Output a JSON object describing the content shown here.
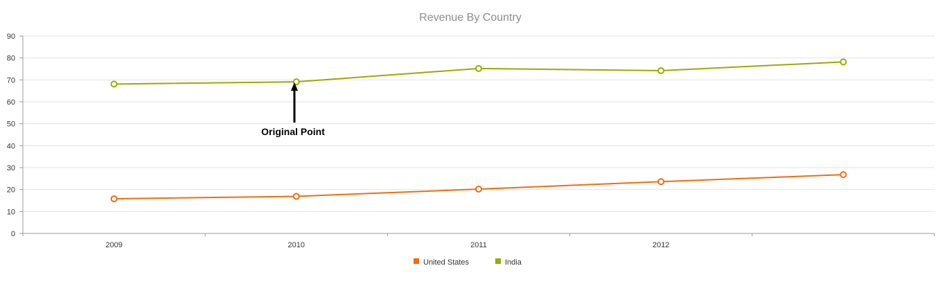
{
  "chart_data": {
    "type": "line",
    "title": "Revenue By Country",
    "x": [
      "2009",
      "2010",
      "2011",
      "2012",
      ""
    ],
    "x_tick_labels": [
      "2009",
      "2010",
      "2011",
      "2012"
    ],
    "y_ticks": [
      0,
      10,
      20,
      30,
      40,
      50,
      60,
      70,
      80,
      90
    ],
    "ylim": [
      0,
      90
    ],
    "grid": true,
    "legend_position": "bottom",
    "series": [
      {
        "name": "United States",
        "color": "#f26c0d",
        "values": [
          15.8,
          16.9,
          20.2,
          23.6,
          26.8
        ]
      },
      {
        "name": "India",
        "color": "#9aaa00",
        "values": [
          68.1,
          69.1,
          75.2,
          74.2,
          78.2
        ]
      }
    ],
    "annotation": {
      "text": "Original Point",
      "series": "India",
      "point_index": 1
    }
  }
}
